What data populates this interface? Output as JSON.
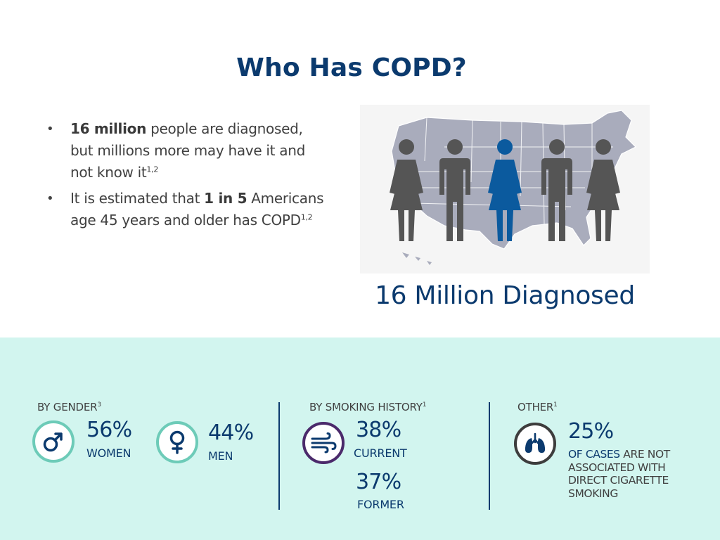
{
  "title": "Who Has COPD?",
  "bullets": [
    {
      "bold": "16 million",
      "text": " people are diagnosed, but millions more may have it and not know it",
      "sup": "1,2"
    },
    {
      "pre": "It is estimated that ",
      "bold": "1 in 5",
      "text": " Americans age 45 years and older has COPD",
      "sup": "1,2"
    }
  ],
  "diagnosed_caption": "16 Million Diagnosed",
  "stats": {
    "gender": {
      "label": "BY GENDER",
      "sup": "3",
      "women": {
        "icon": "male-symbol-icon",
        "pct": "56%",
        "label": "WOMEN"
      },
      "men": {
        "icon": "female-symbol-icon",
        "pct": "44%",
        "label": "MEN"
      }
    },
    "smoking": {
      "label": "BY SMOKING HISTORY",
      "sup": "1",
      "icon": "smoke-wind-icon",
      "current": {
        "pct": "38%",
        "label": "CURRENT"
      },
      "former": {
        "pct": "37%",
        "label": "FORMER"
      }
    },
    "other": {
      "label": "OTHER",
      "sup": "1",
      "icon": "lungs-icon",
      "pct": "25%",
      "desc_highlight": "OF CASES",
      "desc_rest": " ARE NOT ASSOCIATED WITH DIRECT CIGARETTE SMOKING"
    }
  },
  "colors": {
    "navy": "#0b3a6e",
    "teal_band": "#d2f5ef",
    "teal_ring": "#6dcbb8",
    "purple_ring": "#4b2a6b",
    "gray_ring": "#3d3d3d",
    "figure_gray": "#555555",
    "figure_blue": "#0b5a9e",
    "map_gray": "#a9acbc"
  }
}
